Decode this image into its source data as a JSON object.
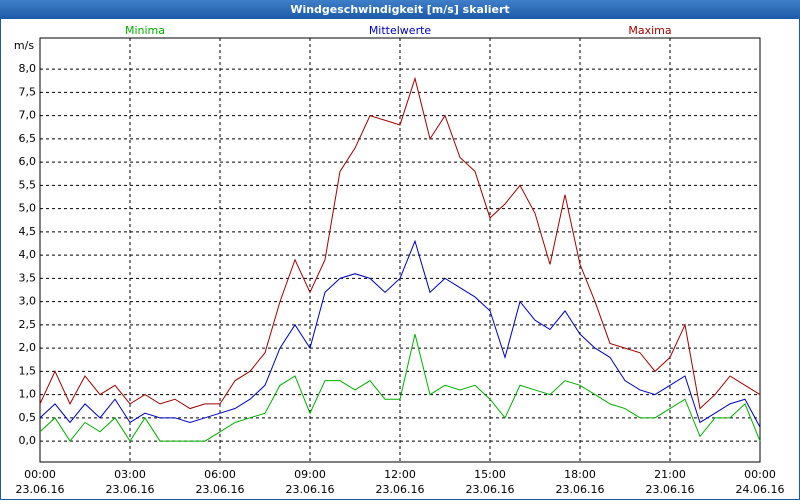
{
  "window_title": "Windgeschwindigkeit [m/s] skaliert",
  "chart_data": {
    "type": "line",
    "y_unit": "m/s",
    "x": [
      0,
      0.5,
      1,
      1.5,
      2,
      2.5,
      3,
      3.5,
      4,
      4.5,
      5,
      5.5,
      6,
      6.5,
      7,
      7.5,
      8,
      8.5,
      9,
      9.5,
      10,
      10.5,
      11,
      11.5,
      12,
      12.5,
      13,
      13.5,
      14,
      14.5,
      15,
      15.5,
      16,
      16.5,
      17,
      17.5,
      18,
      18.5,
      19,
      19.5,
      20,
      20.5,
      21,
      21.5,
      22,
      22.5,
      23,
      23.5,
      24
    ],
    "series": [
      {
        "name": "Minima",
        "color": "#00b000",
        "values": [
          0.2,
          0.5,
          0,
          0.4,
          0.2,
          0.5,
          0,
          0.5,
          0,
          0,
          0,
          0,
          0.2,
          0.4,
          0.5,
          0.6,
          1.2,
          1.4,
          0.6,
          1.3,
          1.3,
          1.1,
          1.3,
          0.9,
          0.9,
          2.3,
          1,
          1.2,
          1.1,
          1.2,
          0.9,
          0.5,
          1.2,
          1.1,
          1,
          1.3,
          1.2,
          1,
          0.8,
          0.7,
          0.5,
          0.5,
          0.7,
          0.9,
          0.1,
          0.5,
          0.5,
          0.8,
          0
        ]
      },
      {
        "name": "Mittelwerte",
        "color": "#0000c0",
        "values": [
          0.5,
          0.8,
          0.4,
          0.8,
          0.5,
          0.9,
          0.4,
          0.6,
          0.5,
          0.5,
          0.4,
          0.5,
          0.6,
          0.7,
          0.9,
          1.2,
          2,
          2.5,
          2,
          3.2,
          3.5,
          3.6,
          3.5,
          3.2,
          3.5,
          4.3,
          3.2,
          3.5,
          3.3,
          3.1,
          2.8,
          1.8,
          3,
          2.6,
          2.4,
          2.8,
          2.3,
          2,
          1.8,
          1.3,
          1.1,
          1,
          1.2,
          1.4,
          0.4,
          0.6,
          0.8,
          0.9,
          0.3
        ]
      },
      {
        "name": "Maxima",
        "color": "#a00000",
        "values": [
          0.8,
          1.5,
          0.8,
          1.4,
          1,
          1.2,
          0.8,
          1,
          0.8,
          0.9,
          0.7,
          0.8,
          0.8,
          1.3,
          1.5,
          1.9,
          3,
          3.9,
          3.2,
          3.9,
          5.8,
          6.3,
          7,
          6.9,
          6.8,
          7.8,
          6.5,
          7,
          6.1,
          5.8,
          4.8,
          5.1,
          5.5,
          4.9,
          3.8,
          5.3,
          3.8,
          3,
          2.1,
          2,
          1.9,
          1.5,
          1.8,
          2.5,
          0.7,
          1,
          1.4,
          1.2,
          1
        ]
      }
    ],
    "xlim": [
      0,
      24
    ],
    "xticks": [
      {
        "value": 0,
        "label": "00:00"
      },
      {
        "value": 3,
        "label": "03:00"
      },
      {
        "value": 6,
        "label": "06:00"
      },
      {
        "value": 9,
        "label": "09:00"
      },
      {
        "value": 12,
        "label": "12:00"
      },
      {
        "value": 15,
        "label": "15:00"
      },
      {
        "value": 18,
        "label": "18:00"
      },
      {
        "value": 21,
        "label": "21:00"
      },
      {
        "value": 24,
        "label": "00:00"
      }
    ],
    "xtick_dates": [
      "23.06.16",
      "23.06.16",
      "23.06.16",
      "23.06.16",
      "23.06.16",
      "23.06.16",
      "23.06.16",
      "23.06.16",
      "24.06.16"
    ],
    "ylim": [
      -0.45,
      8.67
    ],
    "yticks": [
      {
        "value": 0,
        "label": "0,0"
      },
      {
        "value": 0.5,
        "label": "0,5"
      },
      {
        "value": 1,
        "label": "1,0"
      },
      {
        "value": 1.5,
        "label": "1,5"
      },
      {
        "value": 2,
        "label": "2,0"
      },
      {
        "value": 2.5,
        "label": "2,5"
      },
      {
        "value": 3,
        "label": "3,0"
      },
      {
        "value": 3.5,
        "label": "3,5"
      },
      {
        "value": 4,
        "label": "4,0"
      },
      {
        "value": 4.5,
        "label": "4,5"
      },
      {
        "value": 5,
        "label": "5,0"
      },
      {
        "value": 5.5,
        "label": "5,5"
      },
      {
        "value": 6,
        "label": "6,0"
      },
      {
        "value": 6.5,
        "label": "6,5"
      },
      {
        "value": 7,
        "label": "7,0"
      },
      {
        "value": 7.5,
        "label": "7,5"
      },
      {
        "value": 8,
        "label": "8,0"
      }
    ],
    "grid": true
  }
}
